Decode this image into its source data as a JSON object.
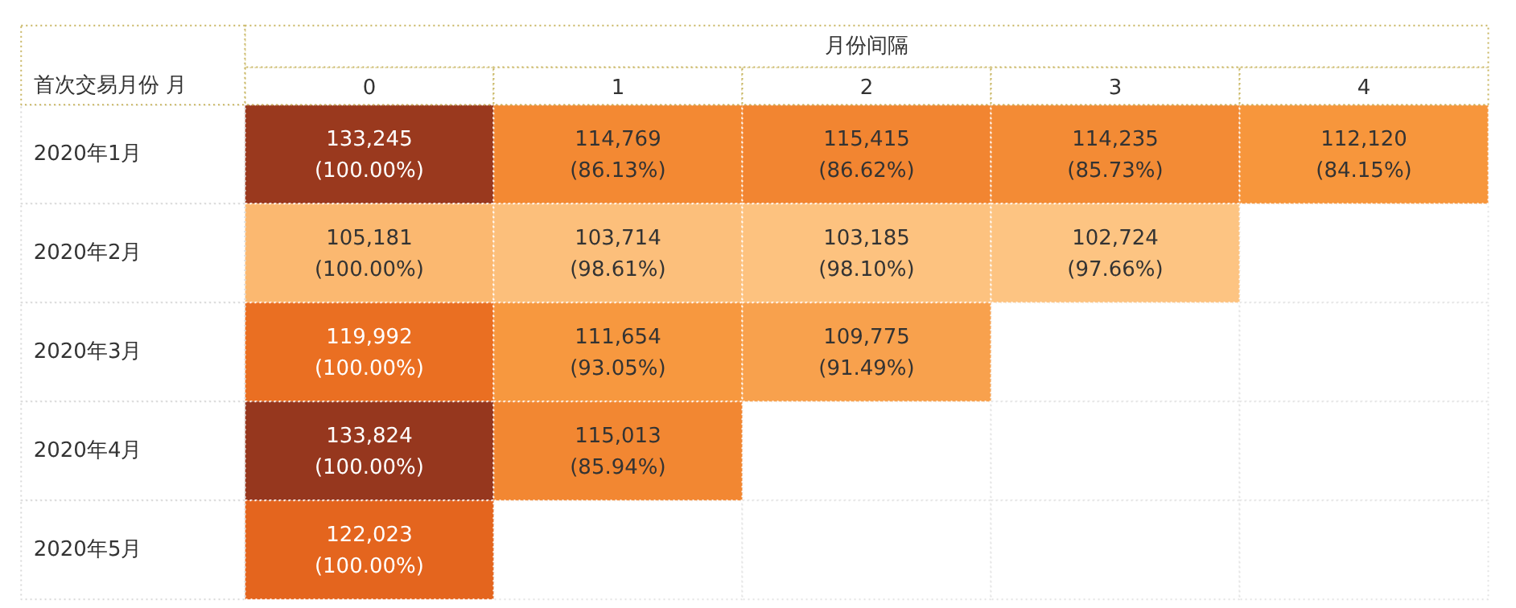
{
  "chart_data": {
    "type": "heatmap",
    "xlabel": "月份间隔",
    "ylabel": "首次交易月份 月",
    "categories": [
      "0",
      "1",
      "2",
      "3",
      "4"
    ],
    "y_categories": [
      "2020年1月",
      "2020年2月",
      "2020年3月",
      "2020年4月",
      "2020年5月"
    ],
    "cells": [
      [
        133245,
        114769,
        115415,
        114235,
        112120
      ],
      [
        105181,
        103714,
        103185,
        102724,
        null
      ],
      [
        119992,
        111654,
        109775,
        null,
        null
      ],
      [
        133824,
        115013,
        null,
        null,
        null
      ],
      [
        122023,
        null,
        null,
        null,
        null
      ]
    ],
    "cell_labels": [
      [
        "133,245",
        "114,769",
        "115,415",
        "114,235",
        "112,120"
      ],
      [
        "105,181",
        "103,714",
        "103,185",
        "102,724",
        null
      ],
      [
        "119,992",
        "111,654",
        "109,775",
        null,
        null
      ],
      [
        "133,824",
        "115,013",
        null,
        null,
        null
      ],
      [
        "122,023",
        null,
        null,
        null,
        null
      ]
    ],
    "annotations": [
      "(100.00%)",
      "(86.13%)",
      "(86.62%)",
      "(85.73%)",
      "(84.15%)",
      "(100.00%)",
      "(98.61%)",
      "(98.10%)",
      "(97.66%)",
      "(100.00%)",
      "(93.05%)",
      "(91.49%)",
      "(100.00%)",
      "(85.94%)",
      "(100.00%)"
    ]
  }
}
